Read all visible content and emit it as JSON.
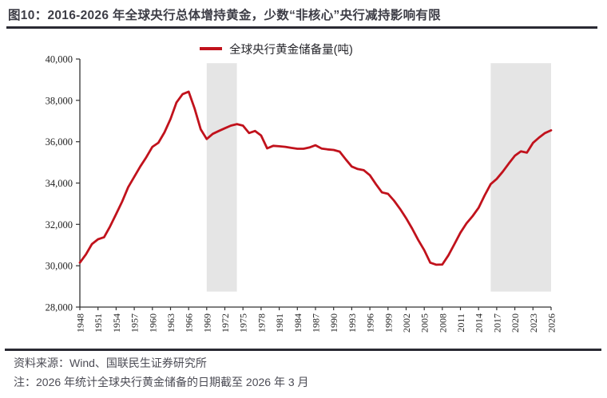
{
  "header": {
    "title": "图10：2016-2026 年全球央行总体增持黄金，少数“非核心”央行减持影响有限"
  },
  "legend": {
    "label": "全球央行黄金储备量(吨)",
    "position": "top-center"
  },
  "footer": {
    "source": "资料来源：Wind、国联民生证券研究所",
    "note": "注：2026 年统计全球央行黄金储备的日期截至 2026 年 3 月"
  },
  "colors": {
    "line": "#c1121c",
    "band": "#e5e5e5",
    "axis": "#333333",
    "title_text": "#3d3d46",
    "rule": "#2a2a33",
    "footer_text": "#4c4c55"
  },
  "chart_data": {
    "type": "line",
    "title": "",
    "series_name": "全球央行黄金储备量(吨)",
    "xlabel": "",
    "ylabel": "",
    "grid": false,
    "legend_position": "top-center",
    "ylim": [
      28000,
      40000
    ],
    "ytick_step": 2000,
    "yticks": [
      28000,
      30000,
      32000,
      34000,
      36000,
      38000,
      40000
    ],
    "xtick_step": 3,
    "xticks": [
      1948,
      1951,
      1954,
      1957,
      1960,
      1963,
      1966,
      1969,
      1972,
      1975,
      1978,
      1981,
      1984,
      1987,
      1990,
      1993,
      1996,
      1999,
      2002,
      2005,
      2008,
      2011,
      2014,
      2017,
      2020,
      2023,
      2026
    ],
    "years": [
      1948,
      1949,
      1950,
      1951,
      1952,
      1953,
      1954,
      1955,
      1956,
      1957,
      1958,
      1959,
      1960,
      1961,
      1962,
      1963,
      1964,
      1965,
      1966,
      1967,
      1968,
      1969,
      1970,
      1971,
      1972,
      1973,
      1974,
      1975,
      1976,
      1977,
      1978,
      1979,
      1980,
      1981,
      1982,
      1983,
      1984,
      1985,
      1986,
      1987,
      1988,
      1989,
      1990,
      1991,
      1992,
      1993,
      1994,
      1995,
      1996,
      1997,
      1998,
      1999,
      2000,
      2001,
      2002,
      2003,
      2004,
      2005,
      2006,
      2007,
      2008,
      2009,
      2010,
      2011,
      2012,
      2013,
      2014,
      2015,
      2016,
      2017,
      2018,
      2019,
      2020,
      2021,
      2022,
      2023,
      2024,
      2025,
      2026
    ],
    "values": [
      30150,
      30550,
      31050,
      31280,
      31380,
      31900,
      32500,
      33100,
      33800,
      34300,
      34800,
      35250,
      35750,
      35950,
      36450,
      37100,
      37900,
      38300,
      38420,
      37600,
      36600,
      36130,
      36380,
      36520,
      36650,
      36780,
      36850,
      36780,
      36420,
      36520,
      36300,
      35680,
      35800,
      35780,
      35750,
      35700,
      35660,
      35660,
      35720,
      35830,
      35670,
      35630,
      35600,
      35520,
      35150,
      34800,
      34680,
      34620,
      34380,
      33950,
      33550,
      33480,
      33150,
      32750,
      32300,
      31800,
      31250,
      30750,
      30150,
      30050,
      30060,
      30500,
      31050,
      31600,
      32050,
      32400,
      32800,
      33400,
      33950,
      34200,
      34550,
      34950,
      35320,
      35530,
      35470,
      35940,
      36200,
      36420,
      36550
    ],
    "highlight_bands": [
      {
        "from_year": 1969,
        "to_year": 1974
      },
      {
        "from_year": 2016,
        "to_year": 2026
      }
    ],
    "band_ylim": [
      28750,
      39800
    ],
    "line_color": "#c1121c",
    "band_color": "#e5e5e5"
  }
}
